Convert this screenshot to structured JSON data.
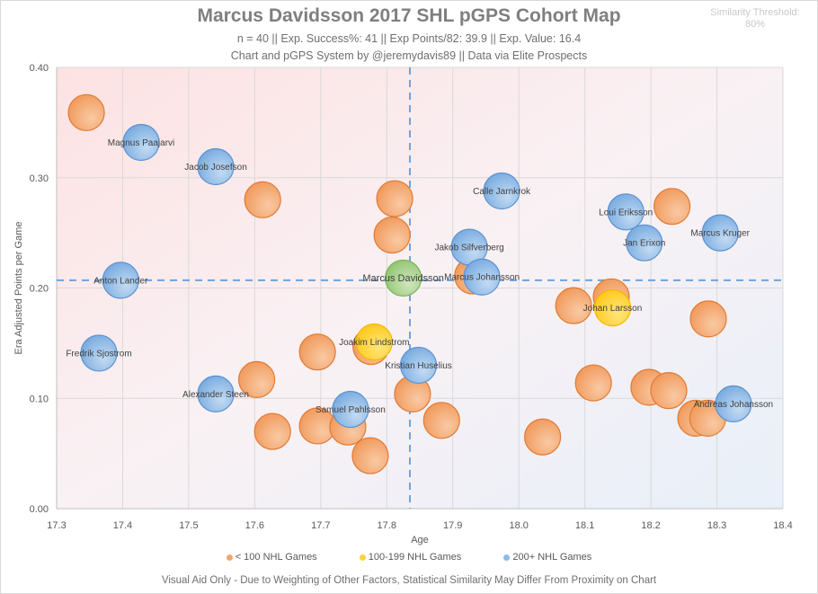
{
  "header": {
    "title": "Marcus Davidsson 2017 SHL pGPS Cohort Map",
    "subtitle": "n = 40 || Exp. Success%: 41 || Exp Points/82: 39.9 || Exp. Value: 16.4",
    "credit": "Chart and pGPS System by @jeremydavis89  || Data via Elite Prospects",
    "threshold_label": "Similarity Threshold:",
    "threshold_value": "80%"
  },
  "footer": "Visual Aid Only - Due to Weighting of Other  Factors, Statistical Similarity May Differ From Proximity on Chart",
  "colors": {
    "lt100": "#f4a66a",
    "lt100_stroke": "#e07b35",
    "mid": "#ffd33d",
    "mid_stroke": "#f3b800",
    "gt200": "#8fb9e6",
    "gt200_stroke": "#5b93d1",
    "subject": "#a6d08a",
    "subject_stroke": "#78b258",
    "refline": "#6fa3dc"
  },
  "chart_data": {
    "type": "scatter",
    "title": "Marcus Davidsson 2017 SHL pGPS Cohort Map",
    "xlabel": "Age",
    "ylabel": "Era Adjusted Points per Game",
    "xlim": [
      17.3,
      18.4
    ],
    "ylim": [
      0.0,
      0.4
    ],
    "xticks": [
      "17.3",
      "17.4",
      "17.5",
      "17.6",
      "17.7",
      "17.8",
      "17.9",
      "18.0",
      "18.1",
      "18.2",
      "18.3",
      "18.4"
    ],
    "yticks": [
      "0.00",
      "0.10",
      "0.20",
      "0.30",
      "0.40"
    ],
    "grid": true,
    "legend_position": "bottom",
    "reference_lines": {
      "x": 17.835,
      "y": 0.207
    },
    "legend": [
      {
        "key": "lt100",
        "label": "< 100 NHL Games"
      },
      {
        "key": "mid",
        "label": "100-199 NHL Games"
      },
      {
        "key": "gt200",
        "label": "200+ NHL Games"
      }
    ],
    "points": [
      {
        "x": 17.345,
        "y": 0.359,
        "group": "lt100",
        "label": ""
      },
      {
        "x": 17.612,
        "y": 0.28,
        "group": "lt100",
        "label": ""
      },
      {
        "x": 17.812,
        "y": 0.281,
        "group": "lt100",
        "label": ""
      },
      {
        "x": 17.808,
        "y": 0.248,
        "group": "lt100",
        "label": ""
      },
      {
        "x": 17.93,
        "y": 0.211,
        "group": "lt100",
        "label": ""
      },
      {
        "x": 18.083,
        "y": 0.184,
        "group": "lt100",
        "label": ""
      },
      {
        "x": 18.14,
        "y": 0.192,
        "group": "lt100",
        "label": ""
      },
      {
        "x": 18.232,
        "y": 0.274,
        "group": "lt100",
        "label": ""
      },
      {
        "x": 18.287,
        "y": 0.172,
        "group": "lt100",
        "label": ""
      },
      {
        "x": 17.695,
        "y": 0.142,
        "group": "lt100",
        "label": ""
      },
      {
        "x": 17.776,
        "y": 0.147,
        "group": "lt100",
        "label": ""
      },
      {
        "x": 17.603,
        "y": 0.117,
        "group": "lt100",
        "label": ""
      },
      {
        "x": 17.627,
        "y": 0.07,
        "group": "lt100",
        "label": ""
      },
      {
        "x": 17.695,
        "y": 0.075,
        "group": "lt100",
        "label": ""
      },
      {
        "x": 17.741,
        "y": 0.074,
        "group": "lt100",
        "label": ""
      },
      {
        "x": 17.775,
        "y": 0.048,
        "group": "lt100",
        "label": ""
      },
      {
        "x": 17.839,
        "y": 0.104,
        "group": "lt100",
        "label": ""
      },
      {
        "x": 17.883,
        "y": 0.08,
        "group": "lt100",
        "label": ""
      },
      {
        "x": 18.036,
        "y": 0.065,
        "group": "lt100",
        "label": ""
      },
      {
        "x": 18.113,
        "y": 0.114,
        "group": "lt100",
        "label": ""
      },
      {
        "x": 18.197,
        "y": 0.11,
        "group": "lt100",
        "label": ""
      },
      {
        "x": 18.227,
        "y": 0.107,
        "group": "lt100",
        "label": ""
      },
      {
        "x": 18.268,
        "y": 0.082,
        "group": "lt100",
        "label": ""
      },
      {
        "x": 18.286,
        "y": 0.082,
        "group": "lt100",
        "label": ""
      },
      {
        "x": 17.781,
        "y": 0.151,
        "group": "mid",
        "label": "Joakim Lindstrom"
      },
      {
        "x": 18.142,
        "y": 0.182,
        "group": "mid",
        "label": "Johan Larsson"
      },
      {
        "x": 17.428,
        "y": 0.332,
        "group": "gt200",
        "label": "Magnus Paajarvi"
      },
      {
        "x": 17.541,
        "y": 0.31,
        "group": "gt200",
        "label": "Jacob Josefson"
      },
      {
        "x": 17.974,
        "y": 0.288,
        "group": "gt200",
        "label": "Calle Jarnkrok"
      },
      {
        "x": 18.162,
        "y": 0.269,
        "group": "gt200",
        "label": "Loui Eriksson"
      },
      {
        "x": 18.19,
        "y": 0.241,
        "group": "gt200",
        "label": "Jan Erixon"
      },
      {
        "x": 18.305,
        "y": 0.25,
        "group": "gt200",
        "label": "Marcus Kruger"
      },
      {
        "x": 17.925,
        "y": 0.237,
        "group": "gt200",
        "label": "Jakob Silfverberg"
      },
      {
        "x": 17.944,
        "y": 0.21,
        "group": "gt200",
        "label": "Marcus Johansson"
      },
      {
        "x": 17.397,
        "y": 0.207,
        "group": "gt200",
        "label": "Anton Lander"
      },
      {
        "x": 17.364,
        "y": 0.141,
        "group": "gt200",
        "label": "Fredrik Sjostrom"
      },
      {
        "x": 17.541,
        "y": 0.104,
        "group": "gt200",
        "label": "Alexander Steen"
      },
      {
        "x": 17.745,
        "y": 0.09,
        "group": "gt200",
        "label": "Samuel Pahlsson"
      },
      {
        "x": 17.848,
        "y": 0.13,
        "group": "gt200",
        "label": "Kristian Huselius"
      },
      {
        "x": 18.325,
        "y": 0.095,
        "group": "gt200",
        "label": "Andreas Johansson"
      },
      {
        "x": 17.825,
        "y": 0.209,
        "group": "subject",
        "label": "Marcus Davidsson"
      }
    ]
  }
}
